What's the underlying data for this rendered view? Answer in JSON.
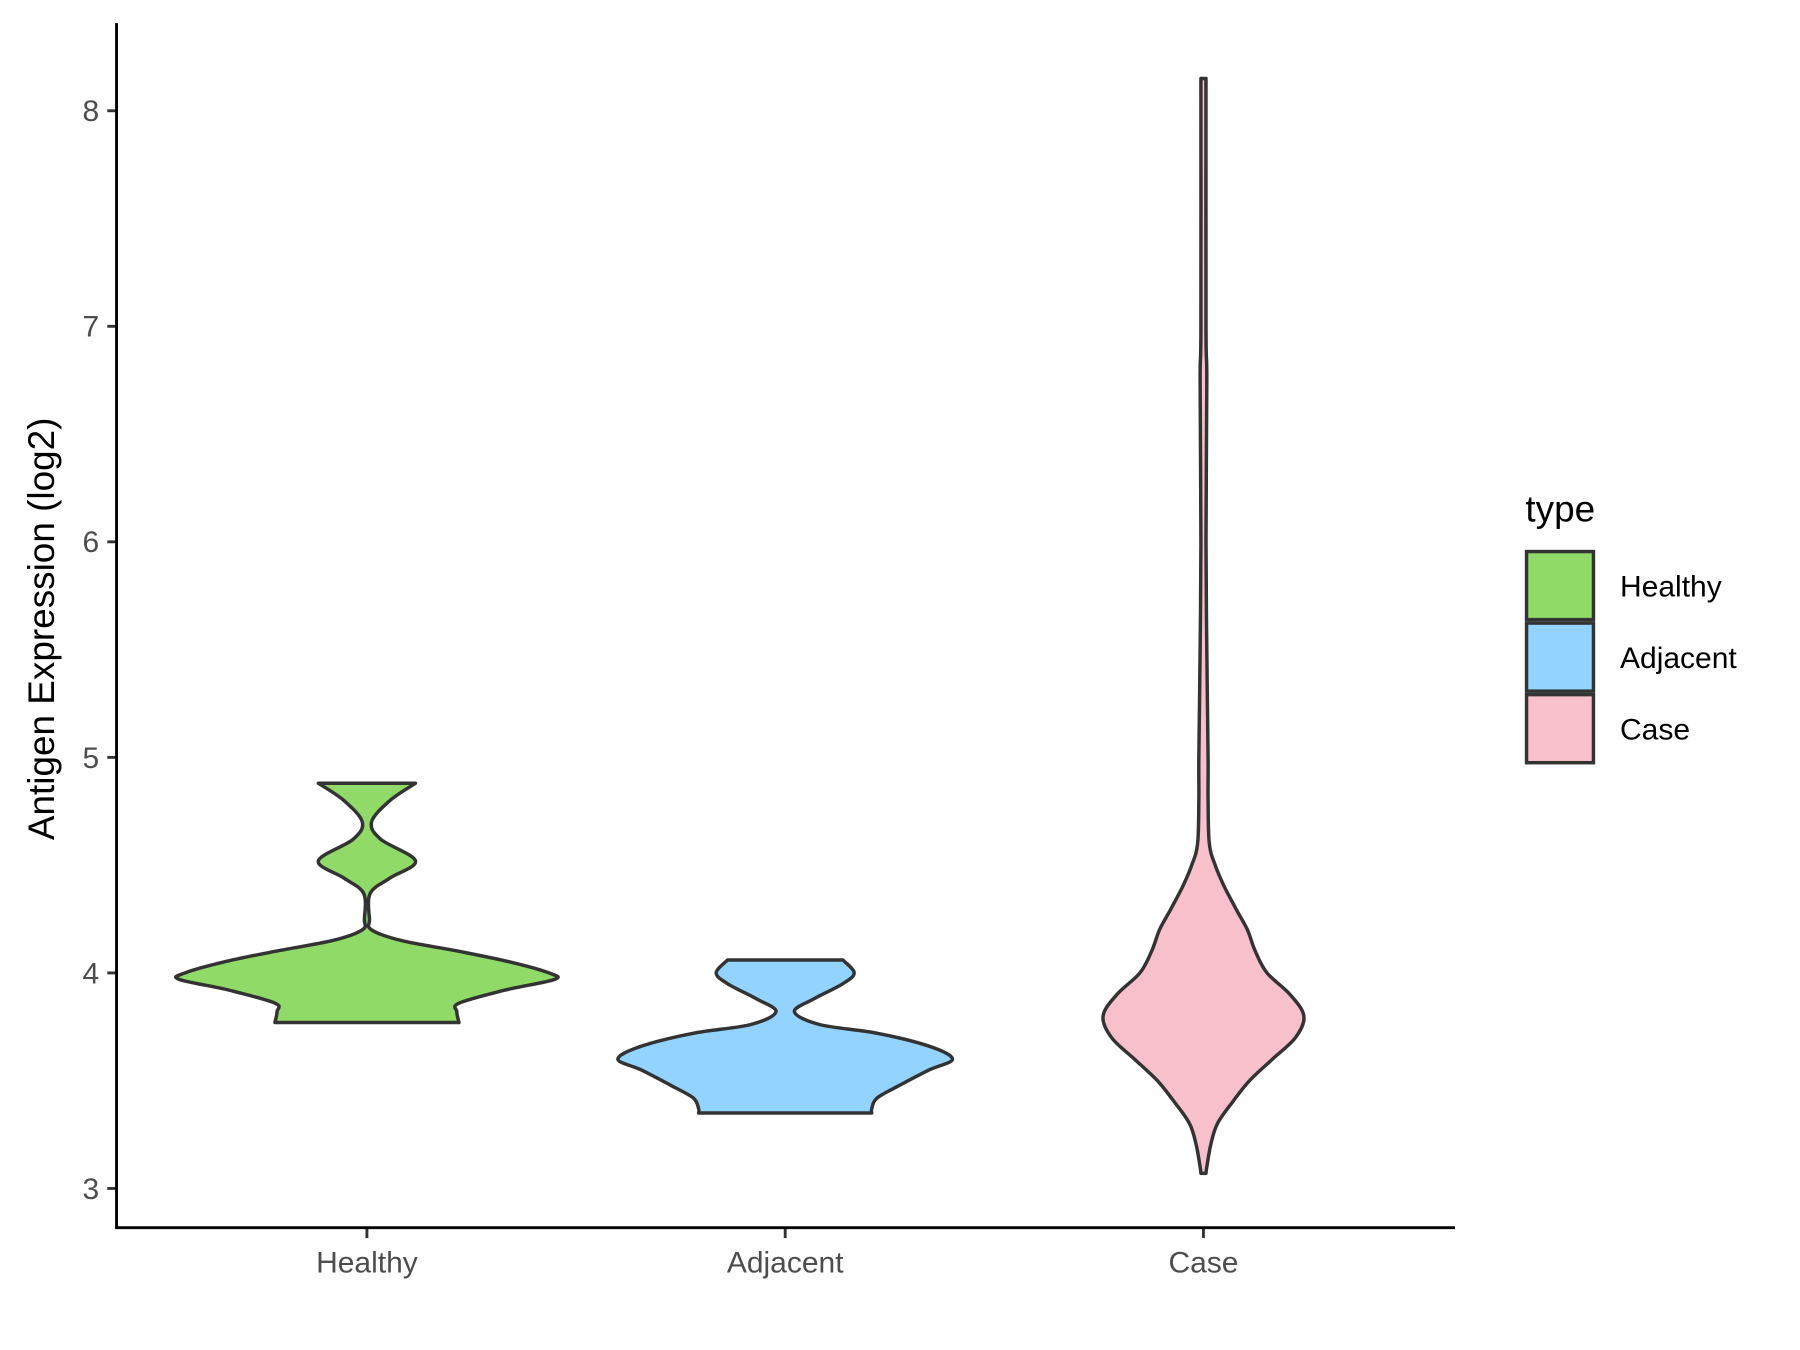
{
  "chart_data": {
    "type": "violin",
    "title": "",
    "xlabel": "",
    "ylabel": "Antigen Expression (log2)",
    "ylim": [
      2.82,
      8.4
    ],
    "yticks": [
      "3",
      "4",
      "5",
      "6",
      "7",
      "8"
    ],
    "categories": [
      "Healthy",
      "Adjacent",
      "Case"
    ],
    "legend": {
      "title": "type",
      "placement": "right",
      "entries": [
        "Healthy",
        "Adjacent",
        "Case"
      ]
    },
    "grid": false,
    "series": [
      {
        "name": "Healthy",
        "color": "#90DB67",
        "profile": [
          [
            4.88,
            0.116
          ],
          [
            4.8,
            0.055
          ],
          [
            4.7,
            0.011
          ],
          [
            4.62,
            0.033
          ],
          [
            4.52,
            0.116
          ],
          [
            4.44,
            0.055
          ],
          [
            4.37,
            0.008
          ],
          [
            4.25,
            0.006
          ],
          [
            4.2,
            0.011
          ],
          [
            4.15,
            0.083
          ],
          [
            4.1,
            0.22
          ],
          [
            4.05,
            0.344
          ],
          [
            4.0,
            0.435
          ],
          [
            3.97,
            0.449
          ],
          [
            3.92,
            0.33
          ],
          [
            3.86,
            0.22
          ],
          [
            3.82,
            0.215
          ],
          [
            3.77,
            0.22
          ]
        ]
      },
      {
        "name": "Adjacent",
        "color": "#92D3FF",
        "profile": [
          [
            4.06,
            0.138
          ],
          [
            4.0,
            0.165
          ],
          [
            3.95,
            0.138
          ],
          [
            3.88,
            0.069
          ],
          [
            3.82,
            0.022
          ],
          [
            3.76,
            0.083
          ],
          [
            3.72,
            0.22
          ],
          [
            3.66,
            0.344
          ],
          [
            3.6,
            0.4
          ],
          [
            3.55,
            0.344
          ],
          [
            3.48,
            0.275
          ],
          [
            3.42,
            0.22
          ],
          [
            3.37,
            0.207
          ],
          [
            3.35,
            0.207
          ]
        ]
      },
      {
        "name": "Case",
        "color": "#F7C0CB",
        "profile": [
          [
            8.15,
            0.006
          ],
          [
            7.0,
            0.006
          ],
          [
            6.75,
            0.008
          ],
          [
            6.0,
            0.006
          ],
          [
            5.5,
            0.008
          ],
          [
            5.0,
            0.011
          ],
          [
            4.8,
            0.011
          ],
          [
            4.6,
            0.014
          ],
          [
            4.5,
            0.028
          ],
          [
            4.4,
            0.05
          ],
          [
            4.3,
            0.077
          ],
          [
            4.2,
            0.105
          ],
          [
            4.1,
            0.124
          ],
          [
            4.0,
            0.152
          ],
          [
            3.9,
            0.207
          ],
          [
            3.8,
            0.24
          ],
          [
            3.7,
            0.22
          ],
          [
            3.6,
            0.165
          ],
          [
            3.5,
            0.11
          ],
          [
            3.4,
            0.069
          ],
          [
            3.3,
            0.033
          ],
          [
            3.2,
            0.017
          ],
          [
            3.1,
            0.008
          ],
          [
            3.07,
            0.006
          ]
        ]
      }
    ]
  }
}
